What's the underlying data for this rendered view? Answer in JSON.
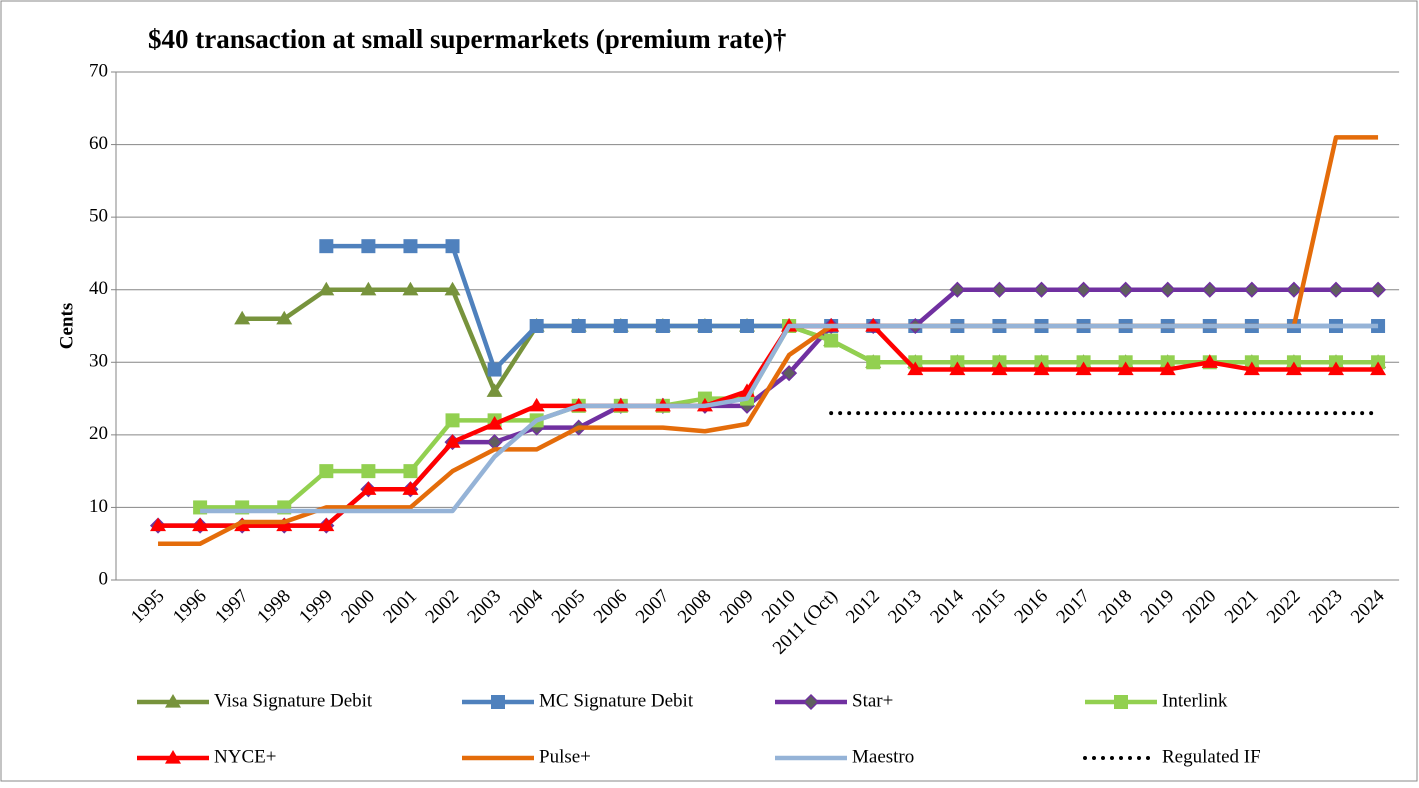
{
  "chart_data": {
    "type": "line",
    "title": "$40 transaction at small supermarkets (premium rate)†",
    "y_label": "Cents",
    "categories": [
      "1995",
      "1996",
      "1997",
      "1998",
      "1999",
      "2000",
      "2001",
      "2002",
      "2003",
      "2004",
      "2005",
      "2006",
      "2007",
      "2008",
      "2009",
      "2010",
      "2011 (Oct)",
      "2012",
      "2013",
      "2014",
      "2015",
      "2016",
      "2017",
      "2018",
      "2019",
      "2020",
      "2021",
      "2022",
      "2023",
      "2024"
    ],
    "ylim": [
      0,
      70
    ],
    "yticks": [
      0,
      10,
      20,
      30,
      40,
      50,
      60,
      70
    ],
    "grid": true,
    "series": [
      {
        "name": "Visa Signature Debit",
        "color": "#77933c",
        "marker": "triangle",
        "values": [
          null,
          null,
          36,
          36,
          40,
          40,
          40,
          40,
          26,
          35,
          35,
          35,
          35,
          35,
          35,
          35,
          33,
          30,
          30,
          30,
          30,
          30,
          30,
          30,
          30,
          30,
          30,
          30,
          30,
          30
        ]
      },
      {
        "name": "MC Signature Debit",
        "color": "#4f81bd",
        "marker": "square",
        "values": [
          null,
          null,
          null,
          null,
          46,
          46,
          46,
          46,
          29,
          35,
          35,
          35,
          35,
          35,
          35,
          35,
          35,
          35,
          35,
          35,
          35,
          35,
          35,
          35,
          35,
          35,
          35,
          35,
          35,
          35
        ]
      },
      {
        "name": "Star+",
        "color": "#7030a0",
        "marker": "diamond",
        "values": [
          7.5,
          7.5,
          7.5,
          7.5,
          7.5,
          12.5,
          12.5,
          19,
          19,
          21,
          21,
          24,
          24,
          24,
          24,
          28.5,
          35,
          35,
          35,
          40,
          40,
          40,
          40,
          40,
          40,
          40,
          40,
          40,
          40,
          40
        ]
      },
      {
        "name": "Interlink",
        "color": "#92d050",
        "marker": "square",
        "values": [
          null,
          10,
          10,
          10,
          15,
          15,
          15,
          22,
          22,
          22,
          24,
          24,
          24,
          25,
          25,
          35,
          33,
          30,
          30,
          30,
          30,
          30,
          30,
          30,
          30,
          30,
          30,
          30,
          30,
          30
        ]
      },
      {
        "name": "NYCE+",
        "color": "#ff0000",
        "marker": "triangle",
        "values": [
          7.5,
          7.5,
          7.5,
          7.5,
          7.5,
          12.5,
          12.5,
          19,
          21.5,
          24,
          24,
          24,
          24,
          24,
          26,
          35,
          35,
          35,
          29,
          29,
          29,
          29,
          29,
          29,
          29,
          30,
          29,
          29,
          29,
          29
        ]
      },
      {
        "name": "Pulse+",
        "color": "#e46c0a",
        "marker": "none",
        "values": [
          5,
          5,
          8,
          8,
          10,
          10,
          10,
          15,
          18,
          18,
          21,
          21,
          21,
          20.5,
          21.5,
          31,
          35,
          35,
          35,
          35,
          35,
          35,
          35,
          35,
          35,
          35,
          35,
          35,
          61,
          61
        ]
      },
      {
        "name": "Maestro",
        "color": "#95b3d7",
        "marker": "none",
        "values": [
          null,
          9.5,
          9.5,
          9.5,
          9.5,
          9.5,
          9.5,
          9.5,
          17,
          22,
          24,
          24,
          24,
          24,
          25,
          35,
          35,
          35,
          35,
          35,
          35,
          35,
          35,
          35,
          35,
          35,
          35,
          35,
          35,
          35
        ]
      },
      {
        "name": "Regulated IF",
        "color": "#000000",
        "marker": "none",
        "dash": "dotted",
        "values": [
          null,
          null,
          null,
          null,
          null,
          null,
          null,
          null,
          null,
          null,
          null,
          null,
          null,
          null,
          null,
          null,
          23,
          23,
          23,
          23,
          23,
          23,
          23,
          23,
          23,
          23,
          23,
          23,
          23,
          23
        ]
      }
    ]
  }
}
